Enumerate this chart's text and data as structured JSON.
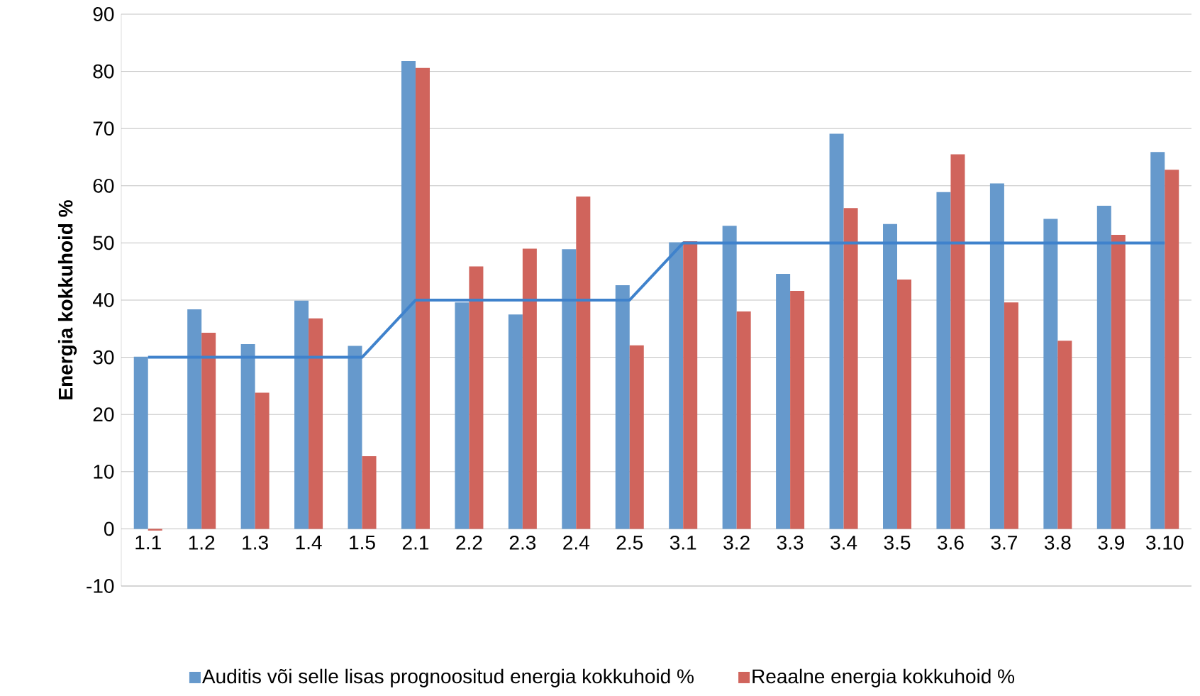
{
  "chart_data": {
    "type": "bar",
    "ylabel": "Energia kokkuhoid  %",
    "categories": [
      "1.1",
      "1.2",
      "1.3",
      "1.4",
      "1.5",
      "2.1",
      "2.2",
      "2.3",
      "2.4",
      "2.5",
      "3.1",
      "3.2",
      "3.3",
      "3.4",
      "3.5",
      "3.6",
      "3.7",
      "3.8",
      "3.9",
      "3.10"
    ],
    "series": [
      {
        "name": "Auditis või selle lisas prognoositud energia kokkuhoid %",
        "color": "#6699cc",
        "values": [
          30.1,
          38.4,
          32.3,
          39.9,
          32.0,
          81.8,
          39.6,
          37.5,
          48.9,
          42.6,
          50.1,
          53.0,
          44.6,
          69.1,
          53.3,
          58.9,
          60.4,
          54.2,
          56.5,
          65.9
        ]
      },
      {
        "name": "Reaalne energia kokkuhoid %",
        "color": "#d0645c",
        "values": [
          -0.3,
          34.3,
          23.8,
          36.8,
          12.7,
          80.6,
          45.9,
          49.0,
          58.1,
          32.1,
          50.3,
          38.0,
          41.6,
          56.1,
          43.6,
          65.5,
          39.6,
          32.9,
          51.4,
          62.8
        ]
      },
      {
        "type": "line",
        "color": "#3f82cc",
        "values": [
          30,
          30,
          30,
          30,
          30,
          40,
          40,
          40,
          40,
          40,
          50,
          50,
          50,
          50,
          50,
          50,
          50,
          50,
          50,
          50
        ]
      }
    ],
    "ylim": [
      -10,
      90
    ],
    "yticks": [
      -10,
      0,
      10,
      20,
      30,
      40,
      50,
      60,
      70,
      80,
      90
    ],
    "grid": "y",
    "legend": "bottom",
    "marker": "none",
    "line_style": "solid"
  }
}
